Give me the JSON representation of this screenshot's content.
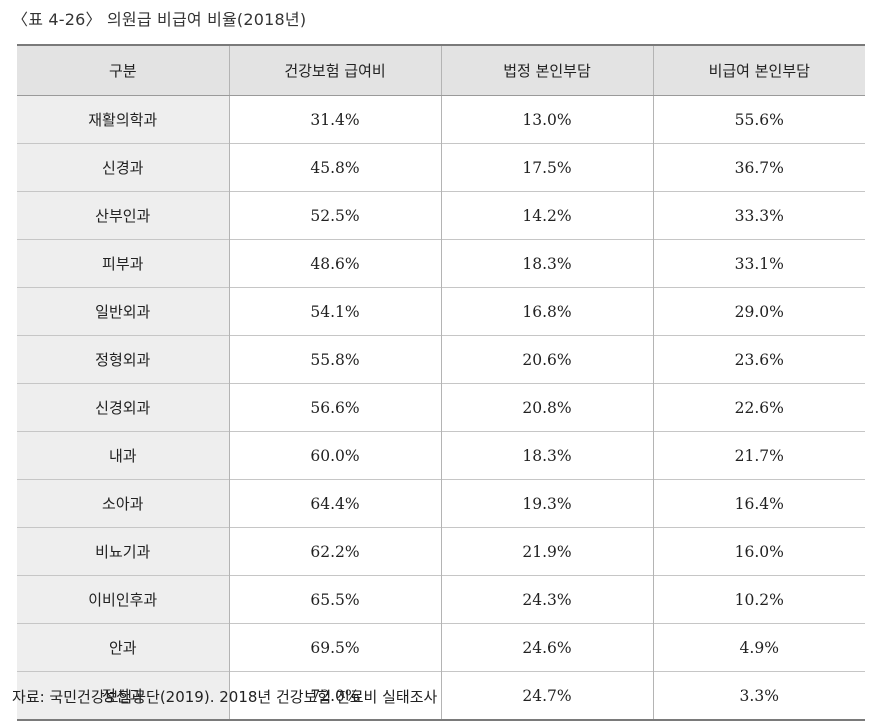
{
  "title": "〈표 4-26〉 의원급 비급여 비율(2018년)",
  "table": {
    "headers": [
      "구분",
      "건강보험 급여비",
      "법정 본인부담",
      "비급여 본인부담"
    ],
    "rows": [
      [
        "재활의학과",
        "31.4%",
        "13.0%",
        "55.6%"
      ],
      [
        "신경과",
        "45.8%",
        "17.5%",
        "36.7%"
      ],
      [
        "산부인과",
        "52.5%",
        "14.2%",
        "33.3%"
      ],
      [
        "피부과",
        "48.6%",
        "18.3%",
        "33.1%"
      ],
      [
        "일반외과",
        "54.1%",
        "16.8%",
        "29.0%"
      ],
      [
        "정형외과",
        "55.8%",
        "20.6%",
        "23.6%"
      ],
      [
        "신경외과",
        "56.6%",
        "20.8%",
        "22.6%"
      ],
      [
        "내과",
        "60.0%",
        "18.3%",
        "21.7%"
      ],
      [
        "소아과",
        "64.4%",
        "19.3%",
        "16.4%"
      ],
      [
        "비뇨기과",
        "62.2%",
        "21.9%",
        "16.0%"
      ],
      [
        "이비인후과",
        "65.5%",
        "24.3%",
        "10.2%"
      ],
      [
        "안과",
        "69.5%",
        "24.6%",
        "4.9%"
      ],
      [
        "정신과",
        "72.0%",
        "24.7%",
        "3.3%"
      ]
    ]
  },
  "source": "자료: 국민건강보험공단(2019). 2018년 건강보험 진료비 실태조사"
}
